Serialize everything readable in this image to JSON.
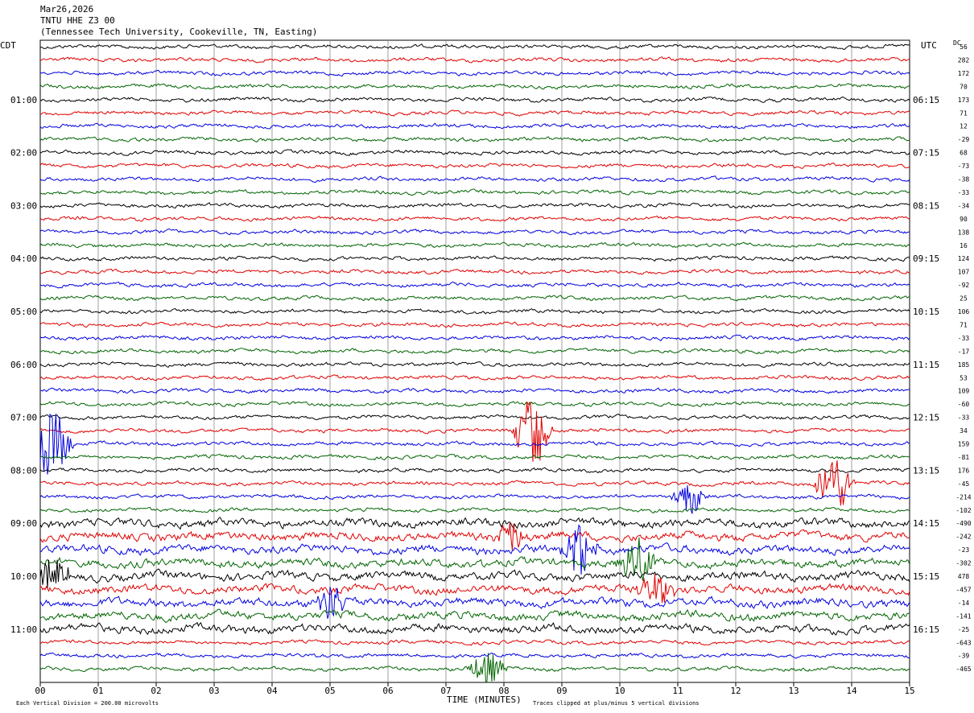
{
  "header": {
    "date": "Mar26,2026",
    "channel": "TNTU HHE Z3 00",
    "station": "(Tennessee Tech University, Cookeville, TN, Easting)"
  },
  "axes": {
    "left_zone": "CDT",
    "right_zone": "UTC",
    "dc_label": "DC",
    "xlabel": "TIME (MINUTES)",
    "footer_left": "Each Vertical Division =  200.00 microvolts",
    "footer_right": "Traces clipped at plus/minus 5 vertical divisions"
  },
  "chart_data": {
    "type": "line",
    "title": "TNTU HHE Z3 00",
    "xlabel": "TIME (MINUTES)",
    "xlim": [
      0,
      15
    ],
    "x_ticks": [
      "00",
      "01",
      "02",
      "03",
      "04",
      "05",
      "06",
      "07",
      "08",
      "09",
      "10",
      "11",
      "12",
      "13",
      "14",
      "15"
    ],
    "left_hour_labels": [
      "01:00",
      "02:00",
      "03:00",
      "04:00",
      "05:00",
      "06:00",
      "07:00",
      "08:00",
      "09:00",
      "10:00",
      "11:00"
    ],
    "right_hour_labels": [
      "06:15",
      "07:15",
      "08:15",
      "09:15",
      "10:15",
      "11:15",
      "12:15",
      "13:15",
      "14:15",
      "15:15",
      "16:15"
    ],
    "trace_colors": [
      "#000000",
      "#e00000",
      "#0000e0",
      "#006400"
    ],
    "dc_offsets": [
      "56",
      "282",
      "172",
      "70",
      "173",
      "71",
      "12",
      "-29",
      "68",
      "-73",
      "-38",
      "-33",
      "-34",
      "90",
      "138",
      "16",
      "124",
      "107",
      "-92",
      "25",
      "106",
      "71",
      "-33",
      "-17",
      "185",
      "53",
      "109",
      "-60",
      "-33",
      "34",
      "159",
      "-81",
      "176",
      "-45",
      "-214",
      "-102",
      "-490",
      "-242",
      "-23",
      "-302",
      "478",
      "-457",
      "-14",
      "-141",
      "-25",
      "-643",
      "-39",
      "-465"
    ],
    "trace_count": 48,
    "events": [
      {
        "trace": 29,
        "minute": 8.5,
        "amplitude": 5
      },
      {
        "trace": 30,
        "minute": 0.2,
        "amplitude": 5
      },
      {
        "trace": 33,
        "minute": 13.7,
        "amplitude": 4
      },
      {
        "trace": 34,
        "minute": 11.2,
        "amplitude": 2
      },
      {
        "trace": 37,
        "minute": 8.1,
        "amplitude": 2
      },
      {
        "trace": 38,
        "minute": 9.3,
        "amplitude": 3
      },
      {
        "trace": 39,
        "minute": 10.3,
        "amplitude": 3
      },
      {
        "trace": 40,
        "minute": 0.2,
        "amplitude": 2
      },
      {
        "trace": 41,
        "minute": 10.6,
        "amplitude": 2
      },
      {
        "trace": 42,
        "minute": 5.0,
        "amplitude": 2
      },
      {
        "trace": 47,
        "minute": 7.7,
        "amplitude": 2
      }
    ]
  }
}
